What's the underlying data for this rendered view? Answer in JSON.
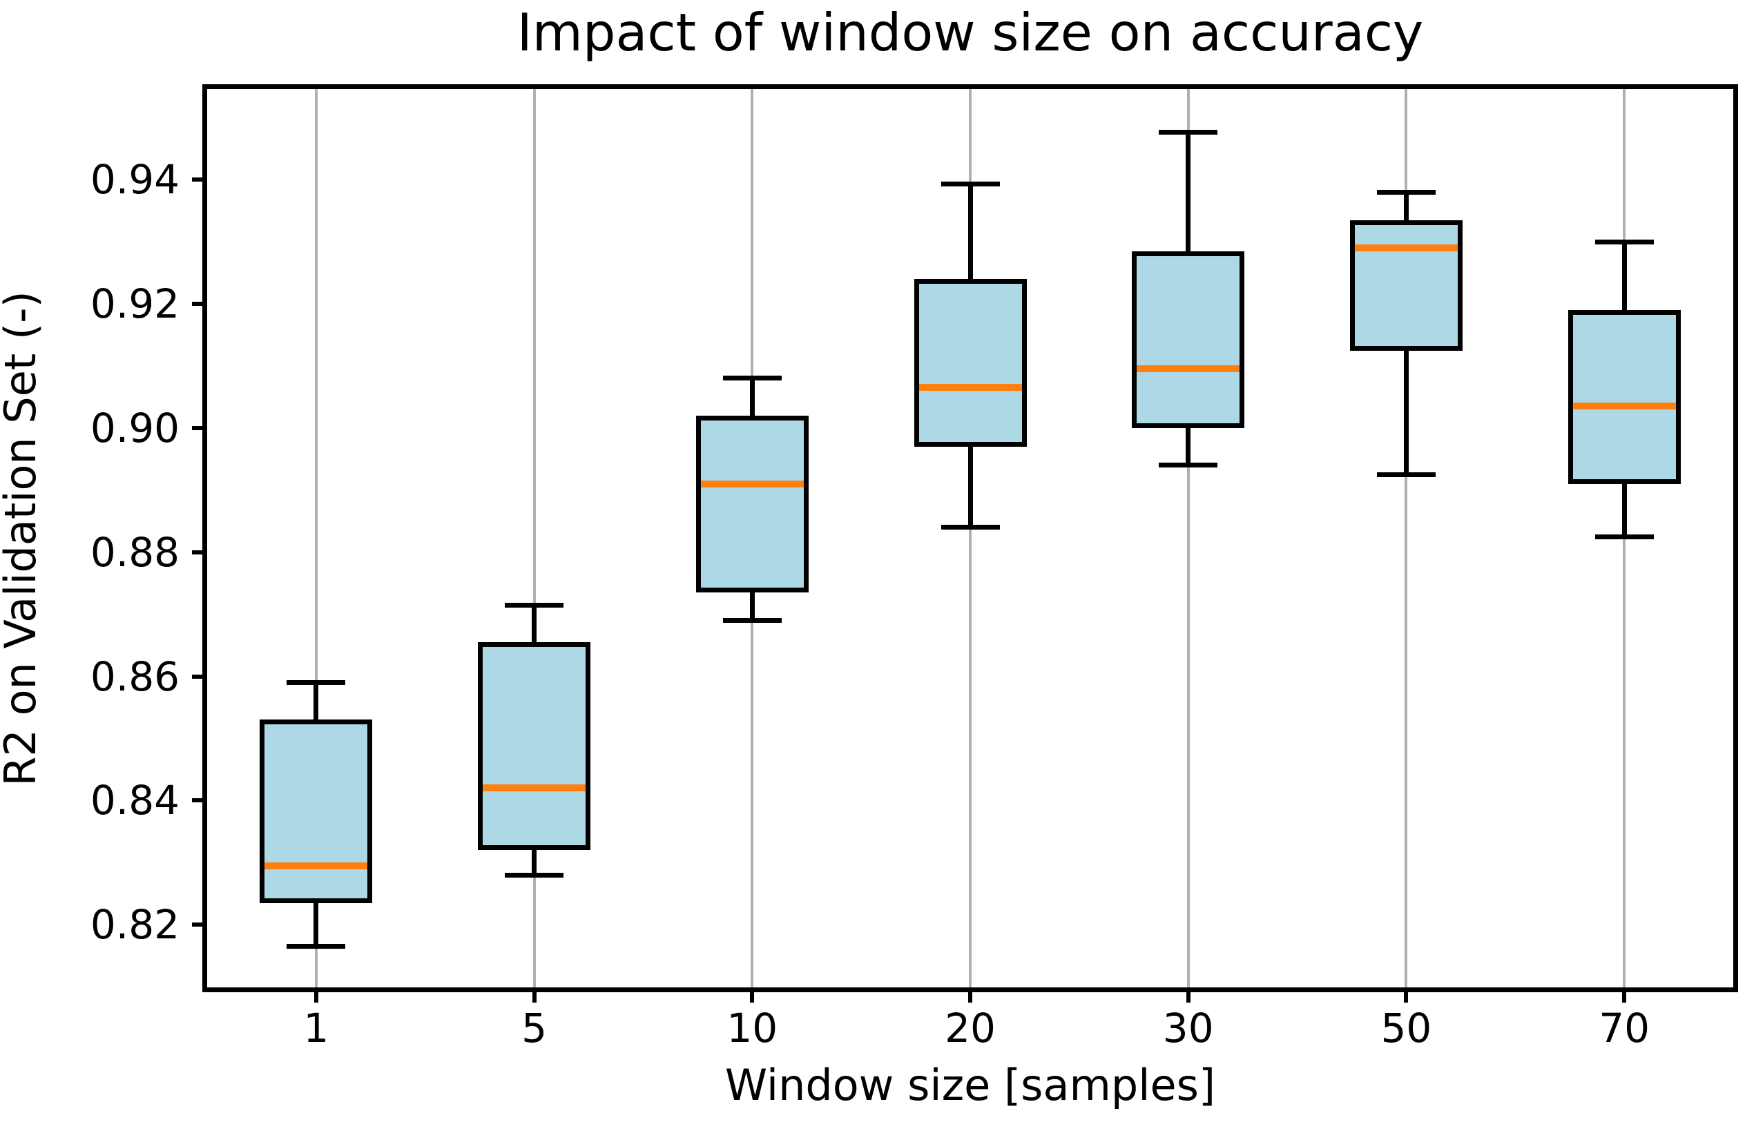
{
  "chart_data": {
    "type": "boxplot",
    "title": "Impact of window size on accuracy",
    "xlabel": "Window size [samples]",
    "ylabel": "R2 on Validation Set (-)",
    "categories": [
      "1",
      "5",
      "10",
      "20",
      "30",
      "50",
      "70"
    ],
    "yticks": [
      0.82,
      0.84,
      0.86,
      0.88,
      0.9,
      0.92,
      0.94
    ],
    "ylim": [
      0.8099,
      0.9546
    ],
    "grid": "vertical-gridlines-on",
    "legend": "none",
    "boxes": [
      {
        "category": "1",
        "whisker_low": 0.8165,
        "q1": 0.8235,
        "median": 0.8295,
        "q3": 0.853,
        "whisker_high": 0.859
      },
      {
        "category": "5",
        "whisker_low": 0.828,
        "q1": 0.832,
        "median": 0.842,
        "q3": 0.8655,
        "whisker_high": 0.8715
      },
      {
        "category": "10",
        "whisker_low": 0.869,
        "q1": 0.8735,
        "median": 0.891,
        "q3": 0.902,
        "whisker_high": 0.908
      },
      {
        "category": "20",
        "whisker_low": 0.884,
        "q1": 0.897,
        "median": 0.9065,
        "q3": 0.924,
        "whisker_high": 0.9393
      },
      {
        "category": "30",
        "whisker_low": 0.894,
        "q1": 0.9,
        "median": 0.9095,
        "q3": 0.9285,
        "whisker_high": 0.9477
      },
      {
        "category": "50",
        "whisker_low": 0.8925,
        "q1": 0.9125,
        "median": 0.929,
        "q3": 0.9335,
        "whisker_high": 0.938
      },
      {
        "category": "70",
        "whisker_low": 0.8825,
        "q1": 0.891,
        "median": 0.9035,
        "q3": 0.919,
        "whisker_high": 0.93
      }
    ],
    "colors": {
      "box_fill": "#ADD8E6",
      "box_edge": "#000000",
      "median": "#FF7F0E",
      "whisker": "#000000",
      "gridline": "#B0B0B0",
      "background": "#FFFFFF"
    }
  }
}
